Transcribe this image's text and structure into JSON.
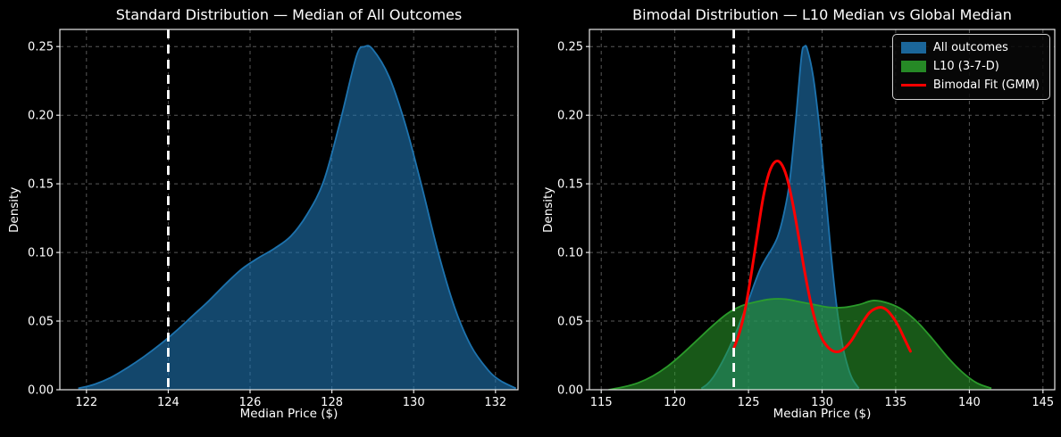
{
  "figure": {
    "background": "#000000",
    "text_color": "#ffffff",
    "grid_color": "#585858",
    "spine_color": "#e8e8e8"
  },
  "chart_data": [
    {
      "type": "area",
      "title": "Standard Distribution — Median of All Outcomes",
      "xlabel": "Median Price ($)",
      "ylabel": "Density",
      "xlim": [
        121.35,
        132.55
      ],
      "ylim": [
        0,
        0.2625
      ],
      "xticks": [
        122,
        124,
        126,
        128,
        130,
        132
      ],
      "yticks": [
        0.0,
        0.05,
        0.1,
        0.15,
        0.2,
        0.25
      ],
      "xtick_decimals": 0,
      "ytick_decimals": 2,
      "grid": true,
      "legend_position": "none",
      "vline": {
        "x": 124,
        "color": "#ffffff",
        "style": "dashed"
      },
      "series": [
        {
          "id": "all-outcomes",
          "name": "All outcomes",
          "kind": "area",
          "color": "#1f77b4",
          "fill_opacity": 0.6,
          "x": [
            121.8,
            122.2,
            122.6,
            123.0,
            123.4,
            123.8,
            124.2,
            124.6,
            125.0,
            125.4,
            125.8,
            126.2,
            126.6,
            127.0,
            127.4,
            127.8,
            128.2,
            128.6,
            128.8,
            129.0,
            129.4,
            129.8,
            130.2,
            130.6,
            131.0,
            131.4,
            131.8,
            132.1,
            132.5
          ],
          "y": [
            0.001,
            0.004,
            0.009,
            0.016,
            0.024,
            0.033,
            0.043,
            0.054,
            0.065,
            0.077,
            0.088,
            0.096,
            0.103,
            0.112,
            0.128,
            0.152,
            0.195,
            0.243,
            0.25,
            0.248,
            0.228,
            0.193,
            0.148,
            0.1,
            0.06,
            0.032,
            0.015,
            0.007,
            0.001
          ]
        }
      ]
    },
    {
      "type": "area+line",
      "title": "Bimodal Distribution — L10 Median vs Global Median",
      "xlabel": "Median Price ($)",
      "ylabel": "Density",
      "xlim": [
        114.2,
        145.8
      ],
      "ylim": [
        0,
        0.2625
      ],
      "xticks": [
        115,
        120,
        125,
        130,
        135,
        140,
        145
      ],
      "yticks": [
        0.0,
        0.05,
        0.1,
        0.15,
        0.2,
        0.25
      ],
      "xtick_decimals": 0,
      "ytick_decimals": 2,
      "grid": true,
      "legend_position": "top-right",
      "vline": {
        "x": 124,
        "color": "#ffffff",
        "style": "dashed"
      },
      "series": [
        {
          "id": "all-outcomes",
          "name": "All outcomes",
          "kind": "area",
          "color": "#1f77b4",
          "fill_opacity": 0.6,
          "x": [
            121.8,
            122.2,
            122.6,
            123.0,
            123.4,
            123.8,
            124.2,
            124.6,
            125.0,
            125.4,
            125.8,
            126.2,
            126.6,
            127.0,
            127.4,
            127.8,
            128.2,
            128.6,
            128.8,
            129.0,
            129.4,
            129.8,
            130.2,
            130.6,
            131.0,
            131.4,
            131.8,
            132.1,
            132.5
          ],
          "y": [
            0.001,
            0.004,
            0.009,
            0.016,
            0.024,
            0.033,
            0.043,
            0.054,
            0.065,
            0.077,
            0.088,
            0.096,
            0.103,
            0.112,
            0.128,
            0.152,
            0.195,
            0.243,
            0.25,
            0.248,
            0.228,
            0.193,
            0.148,
            0.1,
            0.06,
            0.032,
            0.015,
            0.007,
            0.001
          ]
        },
        {
          "id": "l10",
          "name": "L10 (3-7-D)",
          "kind": "area",
          "color": "#2ca02c",
          "fill_opacity": 0.55,
          "x": [
            115.5,
            116.5,
            117.5,
            118.5,
            119.5,
            120.5,
            121.5,
            122.5,
            123.5,
            124.5,
            125.5,
            126.5,
            127.5,
            128.5,
            129.5,
            130.5,
            131.5,
            132.5,
            133.5,
            134.5,
            135.5,
            136.5,
            137.5,
            138.5,
            139.5,
            140.5,
            141.5
          ],
          "y": [
            0.0,
            0.002,
            0.005,
            0.01,
            0.017,
            0.026,
            0.036,
            0.046,
            0.055,
            0.061,
            0.064,
            0.066,
            0.066,
            0.064,
            0.062,
            0.06,
            0.06,
            0.062,
            0.065,
            0.063,
            0.058,
            0.049,
            0.037,
            0.024,
            0.013,
            0.005,
            0.001
          ]
        },
        {
          "id": "bimodal-fit",
          "name": "Bimodal Fit (GMM)",
          "kind": "line",
          "color": "#ff0000",
          "x": [
            124.0,
            124.4,
            124.8,
            125.2,
            125.6,
            126.0,
            126.4,
            126.8,
            127.2,
            127.6,
            128.0,
            128.4,
            128.8,
            129.2,
            129.6,
            130.0,
            130.4,
            130.8,
            131.2,
            131.6,
            132.0,
            132.4,
            132.8,
            133.2,
            133.6,
            134.0,
            134.4,
            134.8,
            135.2,
            135.6,
            136.0
          ],
          "y": [
            0.03,
            0.042,
            0.06,
            0.085,
            0.113,
            0.14,
            0.158,
            0.166,
            0.165,
            0.155,
            0.136,
            0.112,
            0.087,
            0.065,
            0.048,
            0.037,
            0.031,
            0.028,
            0.028,
            0.031,
            0.036,
            0.043,
            0.05,
            0.056,
            0.059,
            0.06,
            0.058,
            0.053,
            0.046,
            0.037,
            0.028
          ]
        }
      ]
    }
  ]
}
